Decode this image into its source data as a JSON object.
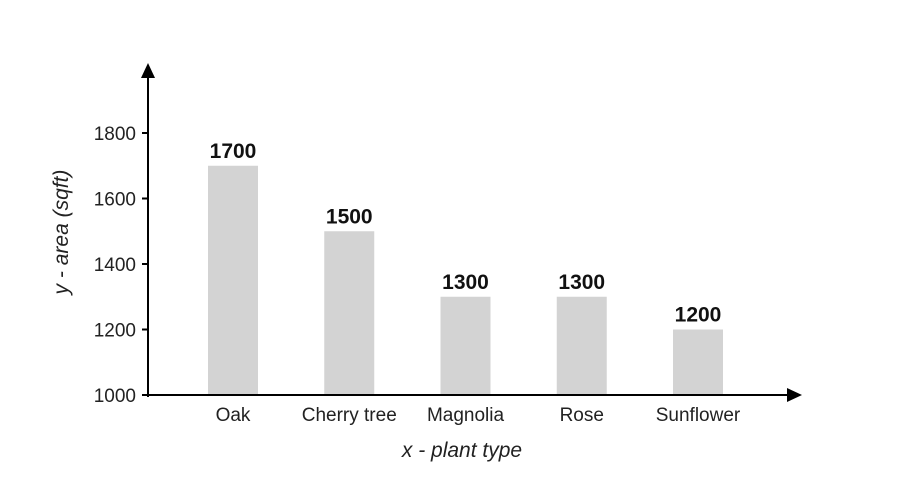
{
  "chart_data": {
    "type": "bar",
    "categories": [
      "Oak",
      "Cherry tree",
      "Magnolia",
      "Rose",
      "Sunflower"
    ],
    "values": [
      1700,
      1500,
      1300,
      1300,
      1200
    ],
    "value_labels": [
      "1700",
      "1500",
      "1300",
      "1300",
      "1200"
    ],
    "title": "",
    "xlabel": "x - plant type",
    "ylabel": "y - area (sqft)",
    "ylim": [
      1000,
      1900
    ],
    "yticks": [
      1000,
      1200,
      1400,
      1600,
      1800
    ],
    "ytick_labels": [
      "1000",
      "1200",
      "1400",
      "1600",
      "1800"
    ],
    "grid": false,
    "legend": "none",
    "colors": {
      "bar": "#d3d3d3",
      "axis": "#000000",
      "text": "#222222"
    }
  }
}
